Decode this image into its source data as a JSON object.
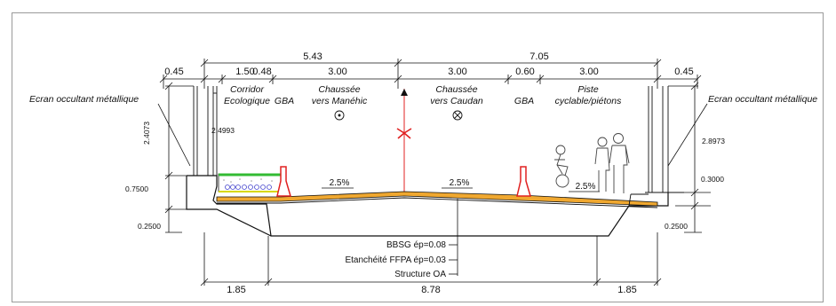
{
  "top_dims": {
    "total_left": "5.43",
    "total_right": "7.05",
    "seg_left_edge": "0.45",
    "seg_corridor": "1.50",
    "seg_gba_left": "0.48",
    "seg_lane_left": "3.00",
    "seg_lane_right": "3.00",
    "seg_gba_right": "0.60",
    "seg_cycle": "3.00",
    "seg_right_edge": "0.45"
  },
  "zones": {
    "corridor_line1": "Corridor",
    "corridor_line2": "Ecologique",
    "gba_left": "GBA",
    "lane_left_line1": "Chaussée",
    "lane_left_line2": "vers Manéhic",
    "lane_right_line1": "Chaussée",
    "lane_right_line2": "vers Caudan",
    "gba_right": "GBA",
    "cycle_line1": "Piste",
    "cycle_line2": "cyclable/piétons"
  },
  "screens": {
    "left": "Ecran occultant métallique",
    "right": "Ecran occultant métallique"
  },
  "heights": {
    "left_screen": "2.4073",
    "left_inner": "2.4993",
    "right_screen": "2.8973",
    "left_curb": "0.7500",
    "left_base": "0.2500",
    "right_curb": "0.3000",
    "right_base": "0.2500"
  },
  "slopes": {
    "corridor": "2.5%",
    "left_lane": "2.5%",
    "right_lane": "2.5%"
  },
  "layers": {
    "surface": "BBSG ép=0.08",
    "waterproof": "Etanchéité FFPA ép=0.03",
    "structure": "Structure OA"
  },
  "bottom_dims": {
    "left": "1.85",
    "center": "8.78",
    "right": "1.85"
  },
  "colors": {
    "asphalt": "#f0a830",
    "barrier": "#e02020",
    "axis": "#e02020",
    "vegetation": "#33bb33",
    "line": "#111111"
  }
}
